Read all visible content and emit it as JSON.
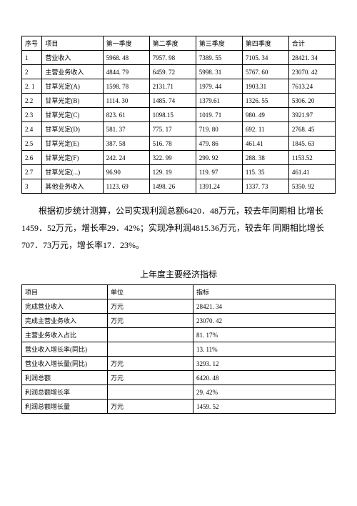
{
  "table1": {
    "headers": {
      "seq": "序号",
      "item": "项目",
      "q1": "第一季度",
      "q2": "第二季度",
      "q3": "第三季度",
      "q4": "第四季度",
      "total": "合计"
    },
    "rows": [
      {
        "seq": "1",
        "item": "营业收入",
        "q1": "5968. 48",
        "q2": "7957. 98",
        "q3": "7389. 55",
        "q4": "7105. 34",
        "total": "28421. 34"
      },
      {
        "seq": "2",
        "item": "主营业务收入",
        "q1": "4844. 79",
        "q2": "6459. 72",
        "q3": "5998. 31",
        "q4": "5767. 60",
        "total": "23070. 42"
      },
      {
        "seq": "2. 1",
        "item": "甘草光定(A)",
        "q1": "1598. 78",
        "q2": "2131.71",
        "q3": "1979. 44",
        "q4": "1903.31",
        "total": "7613.24"
      },
      {
        "seq": "2.2",
        "item": "甘草光定(B)",
        "q1": "1114. 30",
        "q2": "1485. 74",
        "q3": "1379.61",
        "q4": "1326. 55",
        "total": "5306. 20"
      },
      {
        "seq": "2.3",
        "item": "甘草光定(C)",
        "q1": "823. 61",
        "q2": "1098.15",
        "q3": "1019. 71",
        "q4": "980. 49",
        "total": "3921.97"
      },
      {
        "seq": "2.4",
        "item": "甘草光定(D)",
        "q1": "581. 37",
        "q2": "775. 17",
        "q3": "719. 80",
        "q4": "692. 11",
        "total": "2768. 45"
      },
      {
        "seq": "2.5",
        "item": "甘草光定(E)",
        "q1": "387. 58",
        "q2": "516. 78",
        "q3": "479. 86",
        "q4": "461.41",
        "total": "1845. 63"
      },
      {
        "seq": "2.6",
        "item": "甘草光定(F)",
        "q1": "242. 24",
        "q2": "322. 99",
        "q3": "299. 92",
        "q4": "288. 38",
        "total": "1153.52"
      },
      {
        "seq": "2.7",
        "item": "甘草光定(...)",
        "q1": "96.90",
        "q2": "129. 19",
        "q3": "119. 97",
        "q4": "115. 35",
        "total": "461.41"
      },
      {
        "seq": "3",
        "item": "其他业务收入",
        "q1": "1123. 69",
        "q2": "1498. 26",
        "q3": "1391.24",
        "q4": "1337. 73",
        "total": "5350. 92"
      }
    ]
  },
  "paragraph": "根据初步统计测算，公司实现利润总额6420．48万元，较去年同期相 比增长1459．52万元，增长率29．42%；实现净利润4815.36万元，较去年 同期相比增长707．73万元，增长率17．23%。",
  "table2_title": "上年度主要经济指标",
  "table2": {
    "headers": {
      "item": "项目",
      "unit": "单位",
      "val": "指标"
    },
    "rows": [
      {
        "item": "完成营业收入",
        "unit": "万元",
        "val": "28421. 34"
      },
      {
        "item": "完成主营业务收入",
        "unit": "万元",
        "val": "23070. 42"
      },
      {
        "item": "主营业务收入占比",
        "unit": "",
        "val": "81. 17%"
      },
      {
        "item": "营业收入增长率(同比)",
        "unit": "",
        "val": "13. 11%"
      },
      {
        "item": "营业收入增长量(同比)",
        "unit": "万元",
        "val": "3293. 12"
      },
      {
        "item": "利润总额",
        "unit": "万元",
        "val": "6420. 48"
      },
      {
        "item": "利润总额增长率",
        "unit": "",
        "val": "29. 42%"
      },
      {
        "item": "利润总额增长量",
        "unit": "万元",
        "val": "1459. 52"
      }
    ]
  }
}
